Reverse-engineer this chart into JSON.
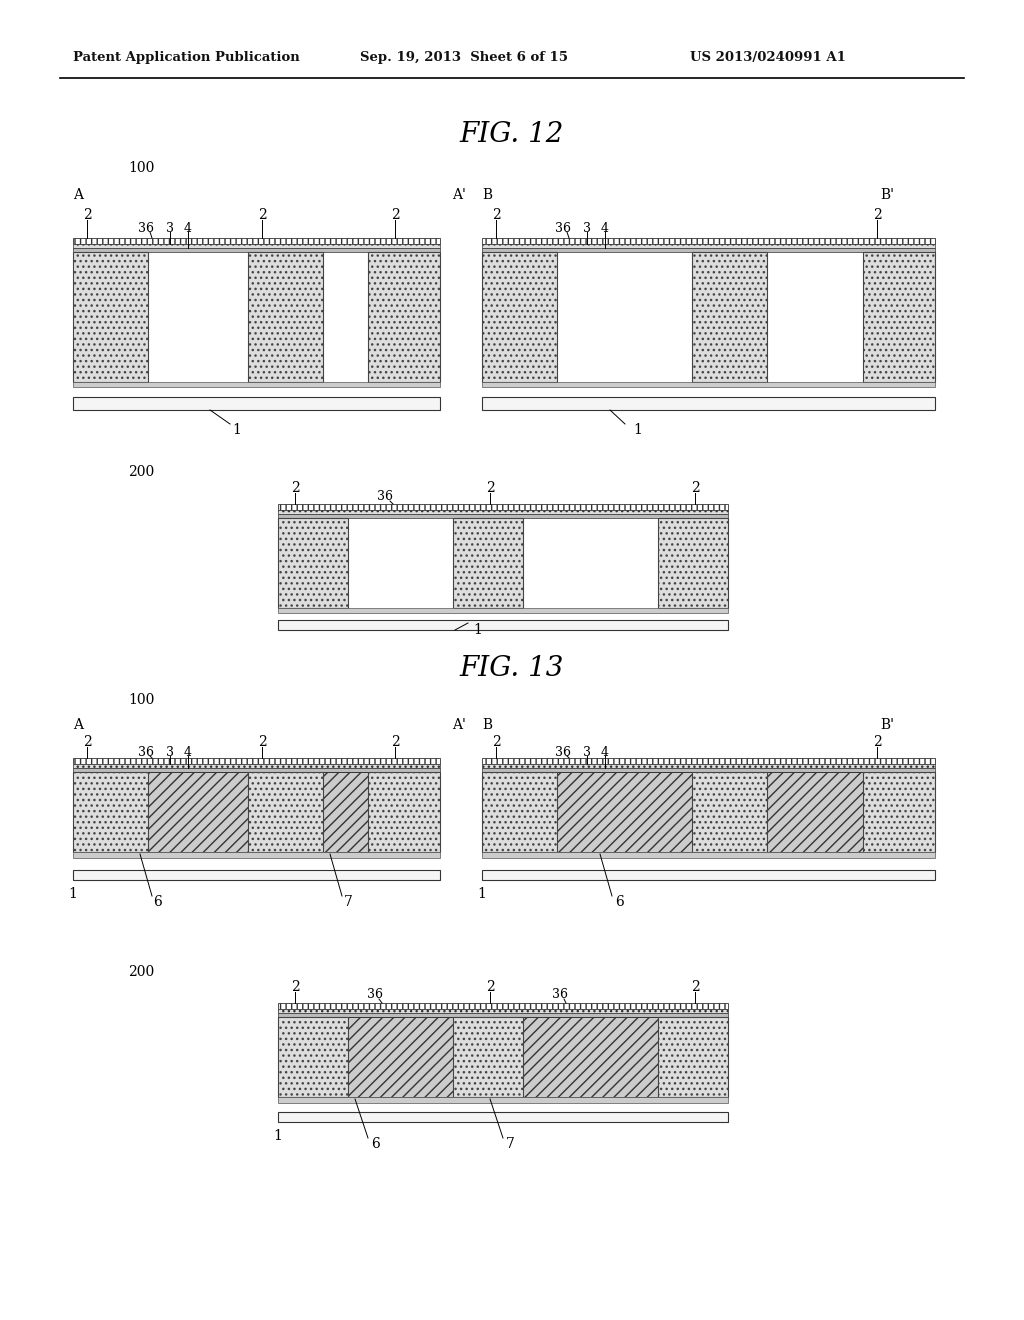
{
  "bg_color": "#ffffff",
  "header_left": "Patent Application Publication",
  "header_mid": "Sep. 19, 2013  Sheet 6 of 15",
  "header_right": "US 2013/0240991 A1",
  "fig12_title": "FIG. 12",
  "fig13_title": "FIG. 13"
}
